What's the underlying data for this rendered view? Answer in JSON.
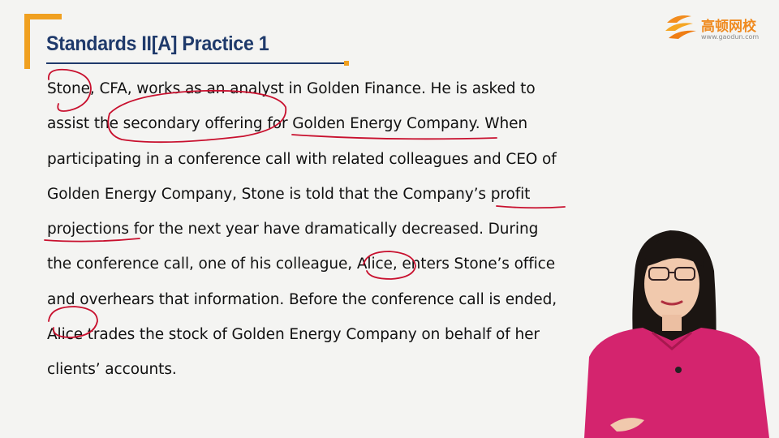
{
  "slide": {
    "title": "Standards II[A] Practice 1",
    "body_lines": [
      "Stone, CFA, works as an analyst in Golden Finance. He is asked to",
      "assist the secondary offering for Golden Energy Company. When",
      "participating in a conference call with related colleagues and CEO of",
      "Golden Energy Company, Stone is told that the Company’s profit",
      "projections for the next year have dramatically decreased. During",
      "the conference call, one of his colleague, Alice, enters Stone’s office",
      "and overhears that information. Before the conference call is ended,",
      "Alice trades the stock of Golden Energy Company on behalf of her",
      "clients’ accounts."
    ]
  },
  "logo": {
    "name": "高顿网校",
    "url": "www.gaodun.com",
    "icon": "gaodun-logo-icon"
  },
  "colors": {
    "accent": "#f0a020",
    "title": "#1f3a6b",
    "annotation": "#c8102e",
    "presenter_top": "#d4246e"
  }
}
